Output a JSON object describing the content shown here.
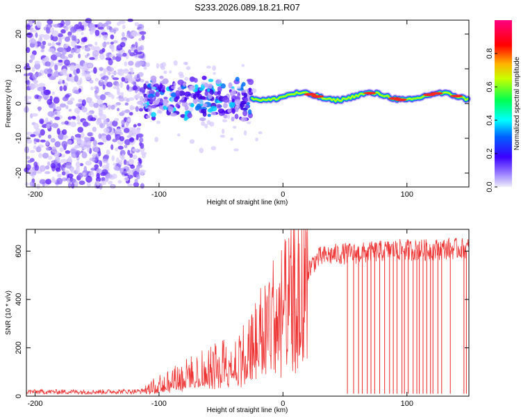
{
  "title": "S233.2026.089.18.21.R07",
  "chart_data": [
    {
      "type": "heatmap",
      "title": "S233.2026.089.18.21.R07",
      "xlabel": "Height of straight line (km)",
      "ylabel": "Frequency (Hz)",
      "xlim": [
        -207,
        150
      ],
      "ylim": [
        -24,
        24
      ],
      "xticks": [
        -200,
        -100,
        0,
        100
      ],
      "yticks": [
        -20,
        -10,
        0,
        10,
        20
      ],
      "colorbar": {
        "label": "Normalized spectral amplitude",
        "range": [
          0,
          1
        ],
        "ticks": [
          "0.0",
          "0.2",
          "0.4",
          "0.6",
          "0.8"
        ],
        "tick_values": [
          0,
          0.2,
          0.4,
          0.6,
          0.8
        ],
        "colormap": [
          "#e6e6f5",
          "#3c00ff",
          "#00ffff",
          "#00ff3c",
          "#ffd700",
          "#ff0000",
          "#ff0080"
        ]
      },
      "regions": [
        {
          "description": "noise",
          "x_range": [
            -207,
            -112
          ],
          "freq_range": [
            -24,
            24
          ],
          "amplitude": 0.1
        },
        {
          "description": "onset",
          "x_range": [
            -112,
            -25
          ],
          "freq_range": [
            -5,
            6
          ],
          "amplitude": 0.3
        },
        {
          "description": "carrier",
          "x_range": [
            -25,
            150
          ],
          "freq_center": [
            1,
            3
          ],
          "amplitude": 0.95
        }
      ]
    },
    {
      "type": "line",
      "xlabel": "Height of straight line (km)",
      "ylabel": "SNR (10 * v/v)",
      "xlim": [
        -207,
        150
      ],
      "ylim": [
        0,
        690
      ],
      "xticks": [
        -200,
        -100,
        0,
        100
      ],
      "yticks": [
        0,
        200,
        400,
        600
      ],
      "series": [
        {
          "name": "SNR",
          "color": "#ee3333",
          "x": [
            -207,
            -150,
            -115,
            -110,
            -100,
            -90,
            -80,
            -70,
            -60,
            -50,
            -40,
            -30,
            -25,
            -20,
            -15,
            -10,
            -5,
            0,
            5,
            10,
            15,
            20,
            25,
            30,
            40,
            50,
            60,
            70,
            80,
            90,
            100,
            110,
            120,
            130,
            140,
            150
          ],
          "y": [
            18,
            18,
            20,
            28,
            55,
            70,
            90,
            105,
            120,
            140,
            160,
            190,
            220,
            260,
            300,
            340,
            360,
            380,
            400,
            430,
            470,
            520,
            555,
            575,
            585,
            590,
            590,
            595,
            600,
            605,
            605,
            605,
            605,
            610,
            610,
            610
          ],
          "dropouts": [
            52,
            57,
            61,
            64,
            68,
            71,
            74,
            78,
            82,
            86,
            89,
            92,
            96,
            98,
            101,
            105,
            108,
            110,
            113,
            116,
            119,
            121,
            125,
            128,
            135,
            146,
            148
          ]
        }
      ]
    }
  ]
}
